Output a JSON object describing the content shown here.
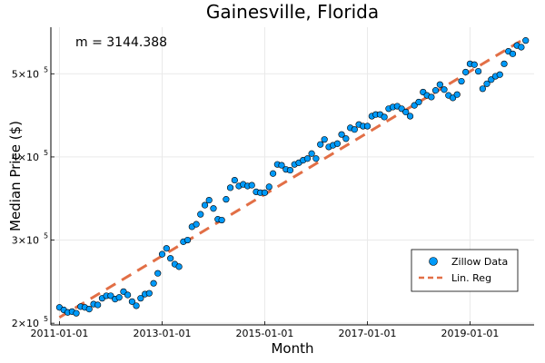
{
  "chart_data": {
    "type": "scatter",
    "title": "Gainesville, Florida",
    "xlabel": "Month",
    "ylabel": "Median Price ($)",
    "xlim": [
      "2010-11-01",
      "2020-04-01"
    ],
    "ylim": [
      198000,
      556000
    ],
    "x_ticks": [
      "2011-01-01",
      "2013-01-01",
      "2015-01-01",
      "2017-01-01",
      "2019-01-01"
    ],
    "y_ticks": [
      {
        "value": 200000,
        "mantissa": "2",
        "label": "2×10",
        "exp": "5"
      },
      {
        "value": 300000,
        "mantissa": "3",
        "label": "3×10",
        "exp": "5"
      },
      {
        "value": 400000,
        "mantissa": "4",
        "label": "4×10",
        "exp": "5"
      },
      {
        "value": 500000,
        "mantissa": "5",
        "label": "5×10",
        "exp": "5"
      }
    ],
    "grid": true,
    "legend_position": "bottom-right",
    "annotation": "m = 3144.388",
    "series": [
      {
        "name": "Zillow Data",
        "kind": "scatter",
        "color": "#009af9",
        "points": [
          [
            "2011-01-01",
            219000
          ],
          [
            "2011-02-01",
            216000
          ],
          [
            "2011-03-01",
            213000
          ],
          [
            "2011-04-01",
            214000
          ],
          [
            "2011-05-01",
            212000
          ],
          [
            "2011-06-01",
            220000
          ],
          [
            "2011-07-01",
            219000
          ],
          [
            "2011-08-01",
            217000
          ],
          [
            "2011-09-01",
            223000
          ],
          [
            "2011-10-01",
            222000
          ],
          [
            "2011-11-01",
            230000
          ],
          [
            "2011-12-01",
            233000
          ],
          [
            "2012-01-01",
            233000
          ],
          [
            "2012-02-01",
            229000
          ],
          [
            "2012-03-01",
            231000
          ],
          [
            "2012-04-01",
            238000
          ],
          [
            "2012-05-01",
            234000
          ],
          [
            "2012-06-01",
            226000
          ],
          [
            "2012-07-01",
            221000
          ],
          [
            "2012-08-01",
            230000
          ],
          [
            "2012-09-01",
            235000
          ],
          [
            "2012-10-01",
            236000
          ],
          [
            "2012-11-01",
            248000
          ],
          [
            "2012-12-01",
            260000
          ],
          [
            "2013-01-01",
            283000
          ],
          [
            "2013-02-01",
            290000
          ],
          [
            "2013-03-01",
            278000
          ],
          [
            "2013-04-01",
            271000
          ],
          [
            "2013-05-01",
            268000
          ],
          [
            "2013-06-01",
            298000
          ],
          [
            "2013-07-01",
            300000
          ],
          [
            "2013-08-01",
            316000
          ],
          [
            "2013-09-01",
            319000
          ],
          [
            "2013-10-01",
            331000
          ],
          [
            "2013-11-01",
            342000
          ],
          [
            "2013-12-01",
            348000
          ],
          [
            "2014-01-01",
            338000
          ],
          [
            "2014-02-01",
            325000
          ],
          [
            "2014-03-01",
            324000
          ],
          [
            "2014-04-01",
            349000
          ],
          [
            "2014-05-01",
            363000
          ],
          [
            "2014-06-01",
            372000
          ],
          [
            "2014-07-01",
            365000
          ],
          [
            "2014-08-01",
            367000
          ],
          [
            "2014-09-01",
            365000
          ],
          [
            "2014-10-01",
            366000
          ],
          [
            "2014-11-01",
            358000
          ],
          [
            "2014-12-01",
            357000
          ],
          [
            "2015-01-01",
            357000
          ],
          [
            "2015-02-01",
            364000
          ],
          [
            "2015-03-01",
            380000
          ],
          [
            "2015-04-01",
            391000
          ],
          [
            "2015-05-01",
            390000
          ],
          [
            "2015-06-01",
            385000
          ],
          [
            "2015-07-01",
            384000
          ],
          [
            "2015-08-01",
            391000
          ],
          [
            "2015-09-01",
            393000
          ],
          [
            "2015-10-01",
            396000
          ],
          [
            "2015-11-01",
            398000
          ],
          [
            "2015-12-01",
            404000
          ],
          [
            "2016-01-01",
            398000
          ],
          [
            "2016-02-01",
            415000
          ],
          [
            "2016-03-01",
            421000
          ],
          [
            "2016-04-01",
            412000
          ],
          [
            "2016-05-01",
            414000
          ],
          [
            "2016-06-01",
            416000
          ],
          [
            "2016-07-01",
            427000
          ],
          [
            "2016-08-01",
            422000
          ],
          [
            "2016-09-01",
            435000
          ],
          [
            "2016-10-01",
            433000
          ],
          [
            "2016-11-01",
            439000
          ],
          [
            "2016-12-01",
            437000
          ],
          [
            "2017-01-01",
            437000
          ],
          [
            "2017-02-01",
            449000
          ],
          [
            "2017-03-01",
            451000
          ],
          [
            "2017-04-01",
            451000
          ],
          [
            "2017-05-01",
            448000
          ],
          [
            "2017-06-01",
            458000
          ],
          [
            "2017-07-01",
            460000
          ],
          [
            "2017-08-01",
            461000
          ],
          [
            "2017-09-01",
            458000
          ],
          [
            "2017-10-01",
            454000
          ],
          [
            "2017-11-01",
            449000
          ],
          [
            "2017-12-01",
            462000
          ],
          [
            "2018-01-01",
            466000
          ],
          [
            "2018-02-01",
            478000
          ],
          [
            "2018-03-01",
            474000
          ],
          [
            "2018-04-01",
            472000
          ],
          [
            "2018-05-01",
            480000
          ],
          [
            "2018-06-01",
            487000
          ],
          [
            "2018-07-01",
            481000
          ],
          [
            "2018-08-01",
            474000
          ],
          [
            "2018-09-01",
            471000
          ],
          [
            "2018-10-01",
            475000
          ],
          [
            "2018-11-01",
            491000
          ],
          [
            "2018-12-01",
            502000
          ],
          [
            "2019-01-01",
            512000
          ],
          [
            "2019-02-01",
            511000
          ],
          [
            "2019-03-01",
            503000
          ],
          [
            "2019-04-01",
            482000
          ],
          [
            "2019-05-01",
            488000
          ],
          [
            "2019-06-01",
            493000
          ],
          [
            "2019-07-01",
            497000
          ],
          [
            "2019-08-01",
            499000
          ],
          [
            "2019-09-01",
            512000
          ],
          [
            "2019-10-01",
            527000
          ],
          [
            "2019-11-01",
            524000
          ],
          [
            "2019-12-01",
            534000
          ],
          [
            "2020-01-01",
            532000
          ],
          [
            "2020-02-01",
            540000
          ]
        ]
      },
      {
        "name": "Lin. Reg",
        "kind": "line",
        "style": "dashed",
        "color": "#e26f46",
        "points": [
          [
            "2011-01-01",
            207000
          ],
          [
            "2020-02-01",
            543000
          ]
        ]
      }
    ]
  }
}
